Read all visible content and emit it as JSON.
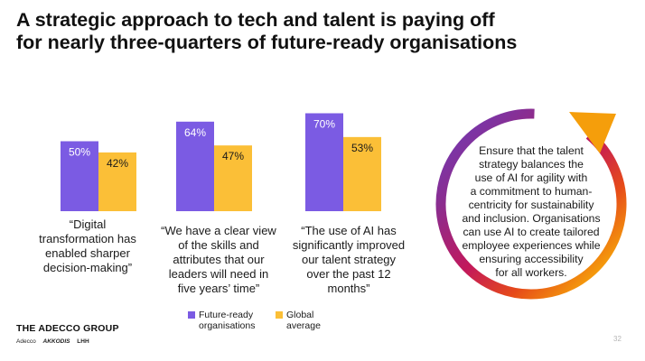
{
  "title_lines": [
    "A strategic approach to tech and talent is paying off",
    "for nearly three-quarters of future-ready organisations"
  ],
  "colors": {
    "future_ready": "#7B5BE3",
    "global": "#FBBF37",
    "ring_gradient": [
      "#6A3DBE",
      "#8B2D8F",
      "#C2185B",
      "#E64A19",
      "#F59E0B",
      "#FBBF24"
    ]
  },
  "chart_data": {
    "type": "bar",
    "categories": [
      "“Digital transformation has enabled sharper decision-making”",
      "“We have a clear view of the skills and attributes that our leaders will need in five years’ time”",
      "“The use of AI has significantly improved our talent strategy over the past 12 months”"
    ],
    "series": [
      {
        "name": "Future-ready organisations",
        "values": [
          50,
          64,
          70
        ],
        "labels": [
          "50%",
          "64%",
          "70%"
        ]
      },
      {
        "name": "Global average",
        "values": [
          42,
          47,
          53
        ],
        "labels": [
          "42%",
          "47%",
          "53%"
        ]
      }
    ],
    "ylim": [
      0,
      100
    ],
    "grid": false,
    "legend_position": "bottom"
  },
  "quotes": [
    [
      "“Digital",
      "transformation has",
      "enabled sharper",
      "decision-making”"
    ],
    [
      "“We have a clear view",
      "of the skills and",
      "attributes that our",
      "leaders will need in",
      "five years’ time”"
    ],
    [
      "“The use of AI has",
      "significantly improved",
      "our talent strategy",
      "over the past 12",
      "months”"
    ]
  ],
  "legend": [
    {
      "lines": [
        "Future-ready",
        "organisations"
      ]
    },
    {
      "lines": [
        "Global",
        "average"
      ]
    }
  ],
  "ring_text_lines": [
    "Ensure that the talent",
    "strategy balances the",
    "use of AI for agility with",
    "a commitment to human-",
    "centricity for sustainability",
    "and inclusion. Organisations",
    "can use AI to create tailored",
    "employee experiences while",
    "ensuring accessibility",
    "for all workers."
  ],
  "brand": {
    "name": "THE ADECCO GROUP",
    "sub_brands": [
      "Adecco",
      "AKKODIS",
      "LHH"
    ]
  },
  "page_number": "32"
}
